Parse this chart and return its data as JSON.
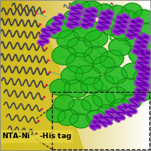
{
  "bg_gradient_left": "#d4c020",
  "bg_gradient_right": "#ffffff",
  "yellow_blob": "#d8c828",
  "green": "#22bb22",
  "green_dark": "#117711",
  "green_light": "#44dd44",
  "purple": "#9933cc",
  "purple_dark": "#6600aa",
  "dark_coil": "#444444",
  "dark_coil2": "#333333",
  "pink_dot": "#ff2255",
  "cyan_line": "#44aaaa",
  "label_fontsize": 6.5,
  "fig_width": 1.89,
  "fig_height": 1.89,
  "dpi": 100
}
